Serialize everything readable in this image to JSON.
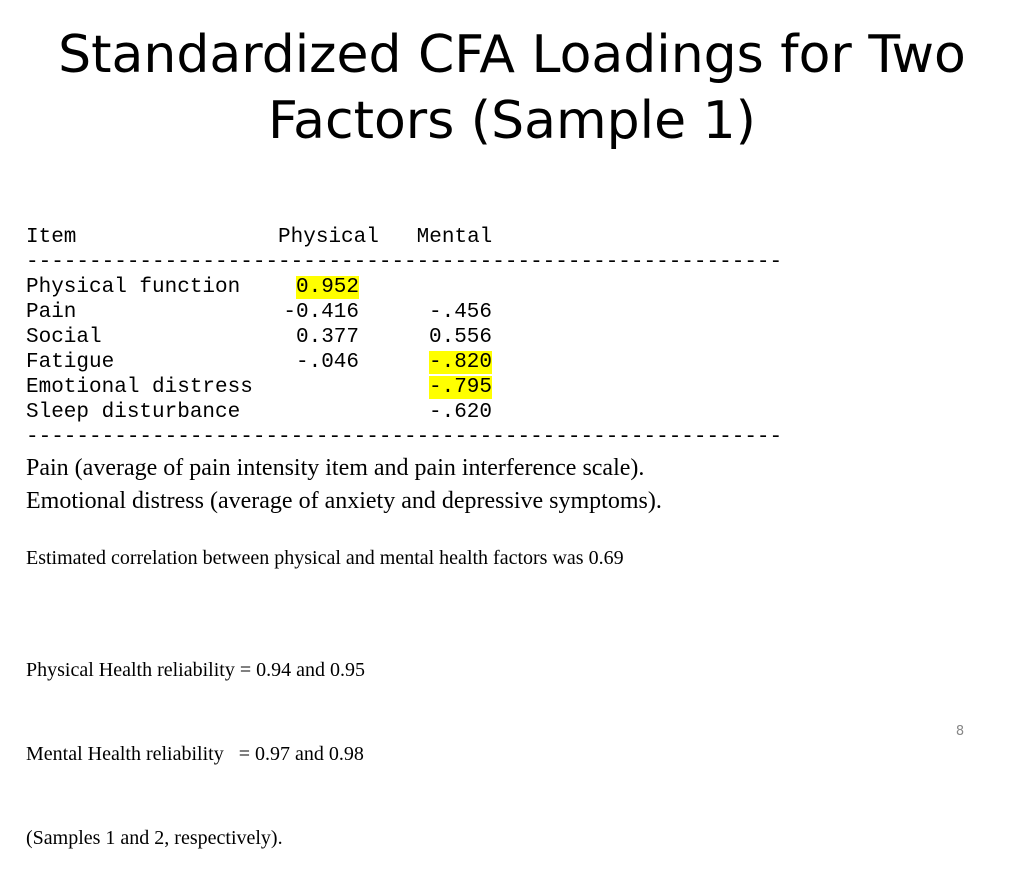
{
  "slide": {
    "title_line1": "Standardized CFA Loadings for Two",
    "title_line2": "Factors (Sample 1)",
    "page_number": "8"
  },
  "table": {
    "header": "Item                Physical   Mental",
    "rule": "------------------------------------------------------------",
    "rows": [
      {
        "item": "Physical function",
        "physical": "0.952",
        "mental": "",
        "physical_highlight": true,
        "mental_highlight": false
      },
      {
        "item": "Pain",
        "physical": "-0.416",
        "mental": "-.456",
        "physical_highlight": false,
        "mental_highlight": false
      },
      {
        "item": "Social",
        "physical": "0.377",
        "mental": "0.556",
        "physical_highlight": false,
        "mental_highlight": false
      },
      {
        "item": "Fatigue",
        "physical": "-.046",
        "mental": "-.820",
        "physical_highlight": false,
        "mental_highlight": true
      },
      {
        "item": "Emotional distress",
        "physical": "",
        "mental": "-.795",
        "physical_highlight": false,
        "mental_highlight": true
      },
      {
        "item": "Sleep disturbance",
        "physical": "",
        "mental": "-.620",
        "physical_highlight": false,
        "mental_highlight": false
      }
    ],
    "highlight_color": "#ffff00"
  },
  "notes": {
    "pain": "Pain (average of pain intensity item and pain interference scale).",
    "emotional": "Emotional distress (average of anxiety and depressive symptoms).",
    "correlation": "Estimated correlation between physical and mental health factors was 0.69",
    "physical_reliability": "Physical Health reliability = 0.94 and 0.95",
    "mental_reliability": "Mental Health reliability   = 0.97 and 0.98",
    "samples": "(Samples 1 and 2, respectively)."
  }
}
